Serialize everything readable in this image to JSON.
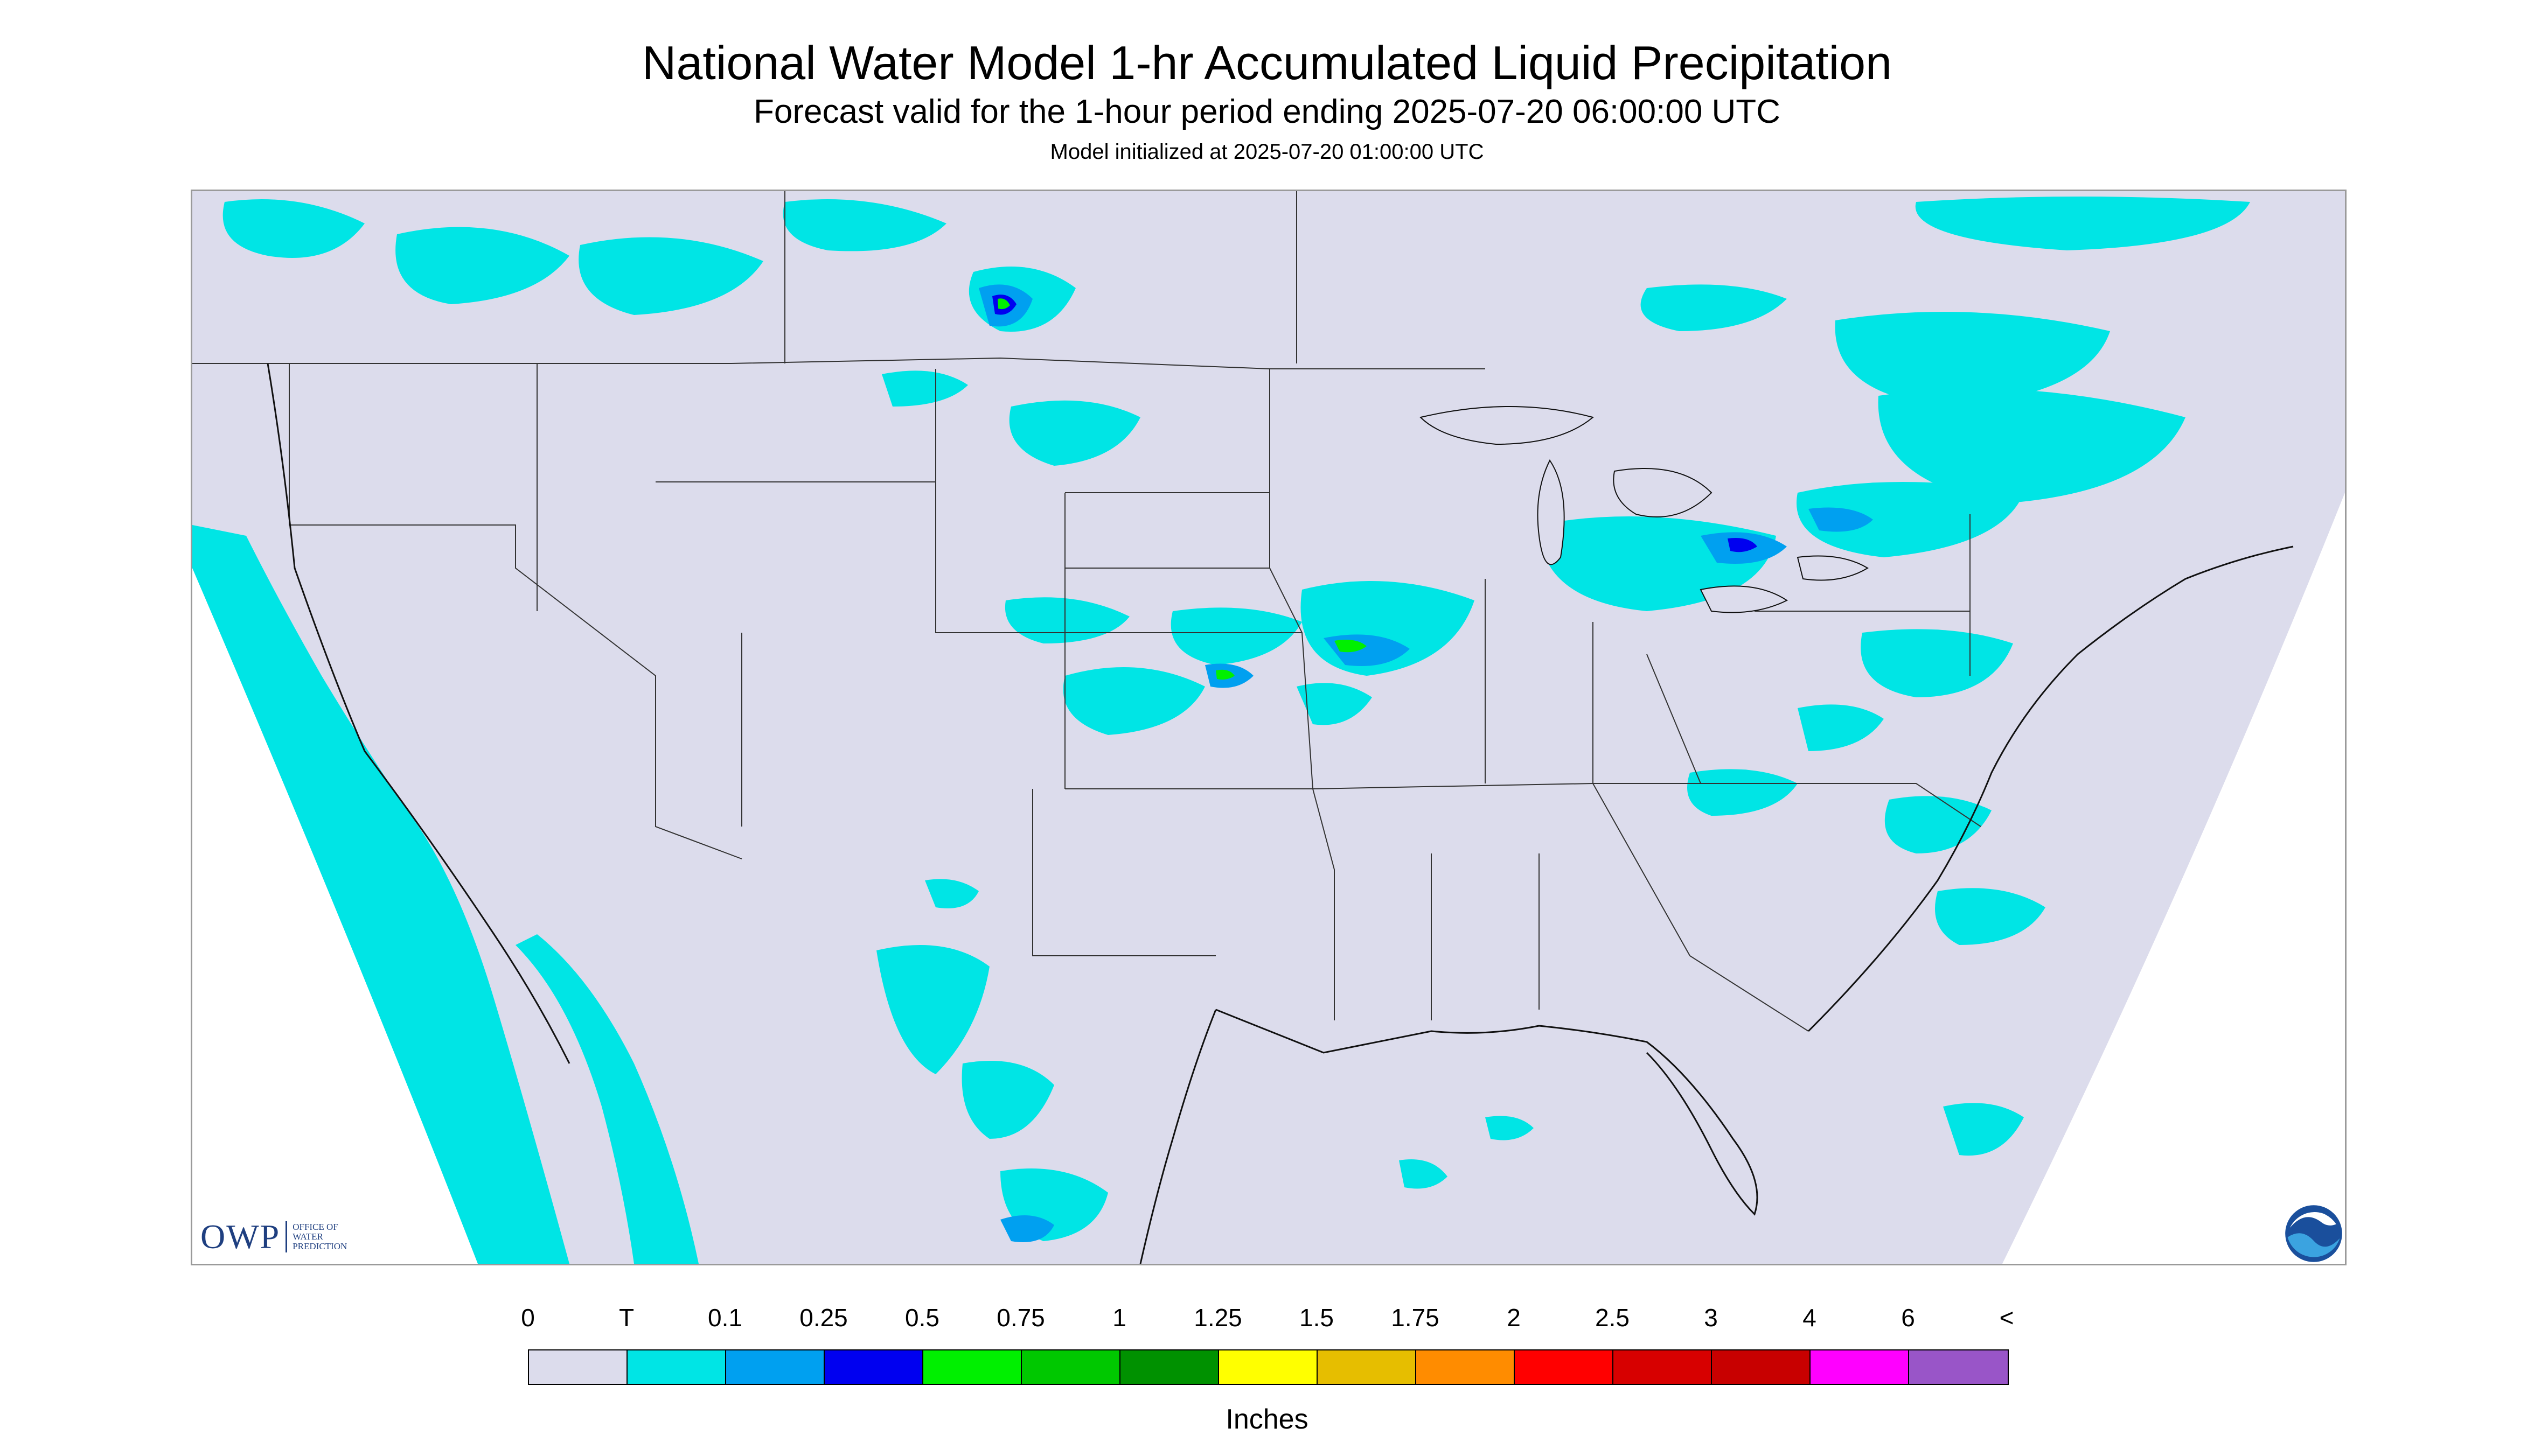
{
  "header": {
    "title": "National Water Model 1-hr Accumulated Liquid Precipitation",
    "subtitle": "Forecast valid for the 1-hour period ending 2025-07-20 06:00:00 UTC",
    "init": "Model initialized at 2025-07-20 01:00:00 UTC"
  },
  "map": {
    "background_color": "#dcdcec",
    "outside_domain_color": "#ffffff",
    "precip_colors": {
      "trace": "#00e5e5",
      "light": "#00a0f0",
      "moderate": "#0000f0",
      "heavy": "#00f000"
    },
    "icons": [
      "state-borders",
      "coastlines",
      "great-lakes"
    ]
  },
  "logos": {
    "owp_mark": "OWP",
    "owp_text_line1": "Office of",
    "owp_text_line2": "Water",
    "owp_text_line3": "Prediction",
    "noaa": "noaa-logo-icon"
  },
  "legend": {
    "labels": [
      "0",
      "T",
      "0.1",
      "0.25",
      "0.5",
      "0.75",
      "1",
      "1.25",
      "1.5",
      "1.75",
      "2",
      "2.5",
      "3",
      "4",
      "6",
      "<"
    ],
    "colors": [
      "#dcdcec",
      "#00e5e5",
      "#00a0f0",
      "#0000f0",
      "#00f000",
      "#00c800",
      "#009100",
      "#ffff00",
      "#e6be00",
      "#ff8c00",
      "#ff0000",
      "#d70000",
      "#c80000",
      "#ff00ff",
      "#9955c8"
    ],
    "units": "Inches"
  }
}
